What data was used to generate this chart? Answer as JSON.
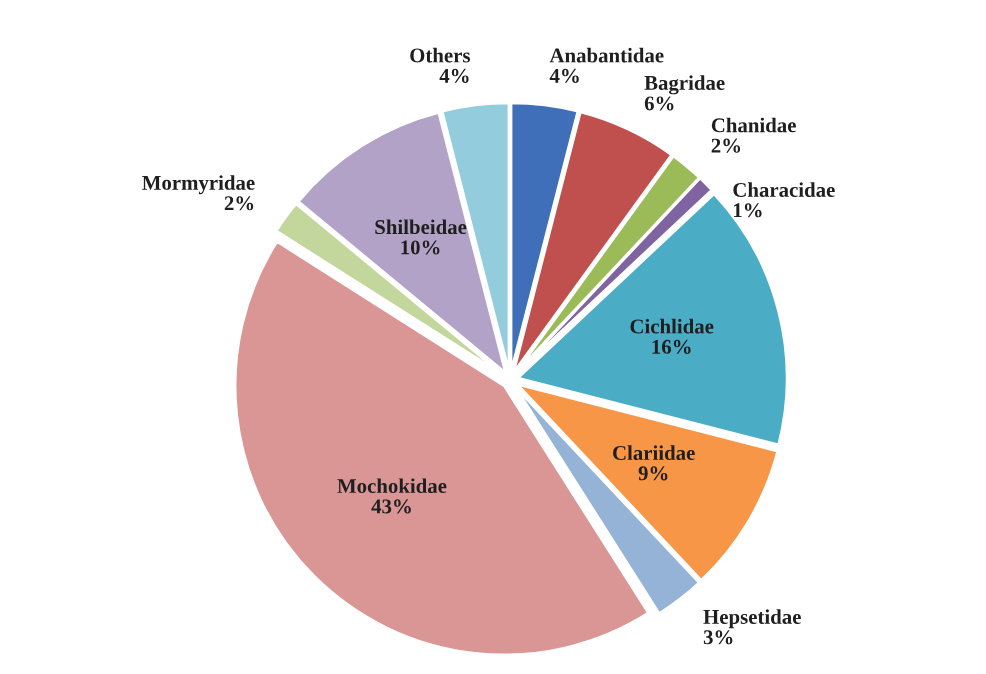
{
  "chart_data": {
    "type": "pie",
    "categories": [
      "Anabantidae",
      "Bagridae",
      "Chanidae",
      "Characidae",
      "Cichlidae",
      "Clariidae",
      "Hepsetidae",
      "Mochokidae",
      "Mormyridae",
      "Shilbeidae",
      "Others"
    ],
    "values": [
      4,
      6,
      2,
      1,
      16,
      9,
      3,
      43,
      2,
      10,
      4
    ],
    "value_labels": [
      "4%",
      "6%",
      "2%",
      "1%",
      "16%",
      "9%",
      "3%",
      "43%",
      "2%",
      "10%",
      "4%"
    ],
    "colors": [
      "#3f6fb8",
      "#c0504d",
      "#9bbb59",
      "#8064a2",
      "#4bacc6",
      "#f79646",
      "#95b3d7",
      "#d99694",
      "#c3d69b",
      "#b3a2c7",
      "#93cddd"
    ],
    "legend": false
  }
}
